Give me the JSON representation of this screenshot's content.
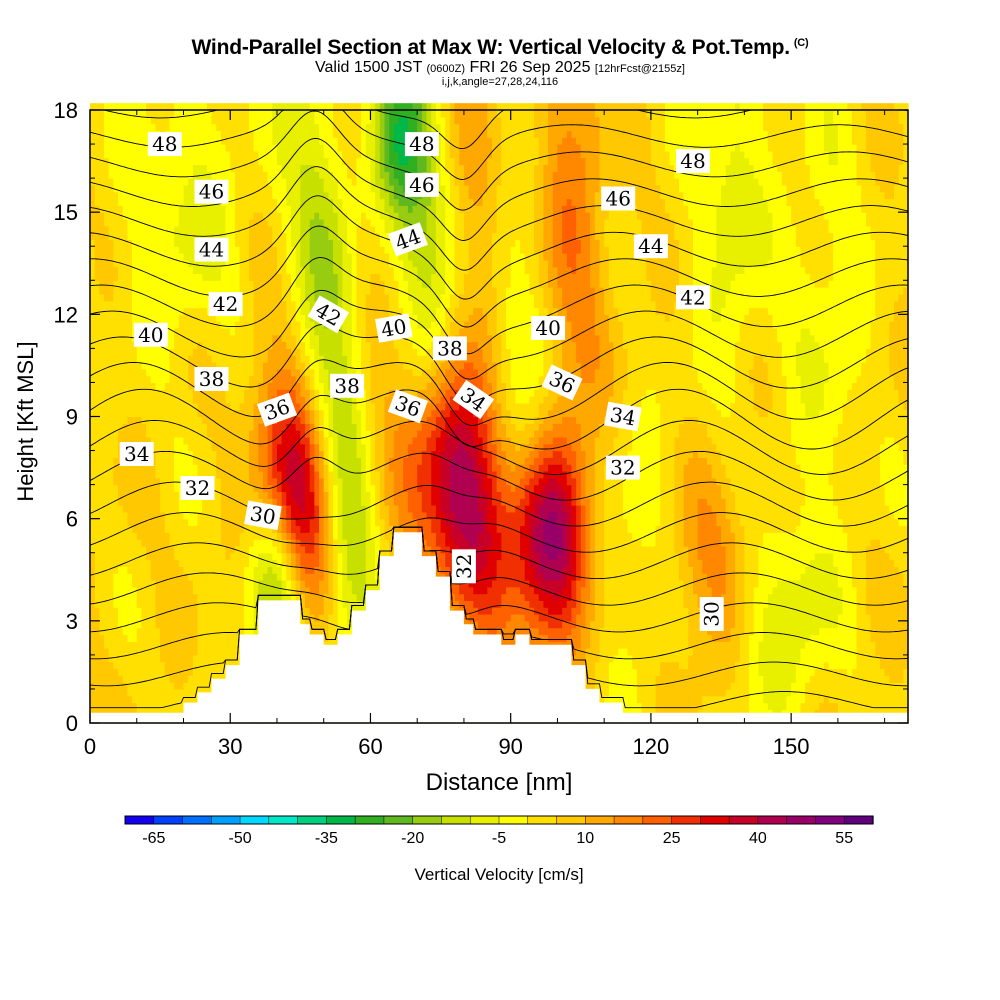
{
  "header": {
    "title": "Wind-Parallel Section at Max W: Vertical Velocity & Pot.Temp.",
    "copyright": "(C)",
    "valid_prefix": "Valid 1500 JST",
    "valid_utc": "(0600Z)",
    "valid_date": "FRI 26 Sep 2025",
    "forecast_info": "[12hrFcst@2155z]",
    "indices": "i,j,k,angle=27,28,24,116"
  },
  "chart_data": {
    "type": "heatmap",
    "title": "Wind-Parallel Section at Max W: Vertical Velocity & Pot.Temp.",
    "xlabel": "Distance [nm]",
    "ylabel": "Height [Kft MSL]",
    "xlim": [
      0,
      175
    ],
    "ylim": [
      0,
      18
    ],
    "x_ticks": [
      "0",
      "30",
      "60",
      "90",
      "120",
      "150"
    ],
    "x_tick_values": [
      0,
      30,
      60,
      90,
      120,
      150
    ],
    "y_ticks": [
      "0",
      "3",
      "6",
      "9",
      "12",
      "15",
      "18"
    ],
    "y_tick_values": [
      0,
      3,
      6,
      9,
      12,
      15,
      18
    ],
    "colorbar": {
      "label": "Vertical Velocity [cm/s]",
      "min": -70,
      "max": 60,
      "tick_labels": [
        "-65",
        "-50",
        "-35",
        "-20",
        "-5",
        "10",
        "25",
        "40",
        "55"
      ],
      "tick_values": [
        -65,
        -50,
        -35,
        -20,
        -5,
        10,
        25,
        40,
        55
      ],
      "colors": [
        "#1400f0",
        "#0040ff",
        "#0070ff",
        "#00a0ff",
        "#00d8ff",
        "#00e8c8",
        "#00d080",
        "#00b848",
        "#30b020",
        "#60b820",
        "#98cc10",
        "#c8e000",
        "#e8f000",
        "#ffff00",
        "#ffe000",
        "#ffc800",
        "#ffa800",
        "#ff8800",
        "#ff6000",
        "#f03000",
        "#e00000",
        "#c80028",
        "#b00050",
        "#980068",
        "#800080",
        "#600080"
      ]
    },
    "terrain": [
      [
        0,
        0.3
      ],
      [
        20,
        0.3
      ],
      [
        20,
        0.6
      ],
      [
        23,
        0.6
      ],
      [
        23,
        0.9
      ],
      [
        26,
        0.9
      ],
      [
        26,
        1.3
      ],
      [
        29,
        1.3
      ],
      [
        29,
        1.7
      ],
      [
        32,
        1.7
      ],
      [
        32,
        2.6
      ],
      [
        36,
        2.6
      ],
      [
        36,
        3.6
      ],
      [
        45,
        3.6
      ],
      [
        45,
        2.9
      ],
      [
        47,
        2.9
      ],
      [
        47,
        2.6
      ],
      [
        50,
        2.6
      ],
      [
        50,
        2.3
      ],
      [
        53,
        2.3
      ],
      [
        53,
        2.6
      ],
      [
        56,
        2.6
      ],
      [
        56,
        3.3
      ],
      [
        59,
        3.3
      ],
      [
        59,
        3.9
      ],
      [
        62,
        3.9
      ],
      [
        62,
        4.9
      ],
      [
        65,
        4.9
      ],
      [
        65,
        5.6
      ],
      [
        71,
        5.6
      ],
      [
        71,
        4.9
      ],
      [
        74,
        4.9
      ],
      [
        74,
        4.3
      ],
      [
        77,
        4.3
      ],
      [
        77,
        3.3
      ],
      [
        80,
        3.3
      ],
      [
        80,
        2.9
      ],
      [
        82,
        2.9
      ],
      [
        82,
        2.6
      ],
      [
        88,
        2.6
      ],
      [
        88,
        2.3
      ],
      [
        91,
        2.3
      ],
      [
        91,
        2.6
      ],
      [
        94,
        2.6
      ],
      [
        94,
        2.3
      ],
      [
        103,
        2.3
      ],
      [
        103,
        1.7
      ],
      [
        106,
        1.7
      ],
      [
        106,
        1.0
      ],
      [
        109,
        1.0
      ],
      [
        109,
        0.6
      ],
      [
        114,
        0.6
      ],
      [
        114,
        0.3
      ],
      [
        175,
        0.3
      ]
    ],
    "theta_levels": [
      28,
      29,
      30,
      31,
      32,
      33,
      34,
      35,
      36,
      37,
      38,
      39,
      40,
      41,
      42,
      43,
      44,
      45,
      46,
      47,
      48,
      49
    ],
    "theta_labels": [
      {
        "text": "48",
        "x": 16,
        "y": 17.0,
        "rot": 0
      },
      {
        "text": "48",
        "x": 71,
        "y": 17.0,
        "rot": 0
      },
      {
        "text": "48",
        "x": 129,
        "y": 16.5,
        "rot": 0
      },
      {
        "text": "46",
        "x": 26,
        "y": 15.6,
        "rot": 0
      },
      {
        "text": "46",
        "x": 71,
        "y": 15.8,
        "rot": 0
      },
      {
        "text": "46",
        "x": 113,
        "y": 15.4,
        "rot": 0
      },
      {
        "text": "44",
        "x": 26,
        "y": 13.9,
        "rot": 0
      },
      {
        "text": "44",
        "x": 68,
        "y": 14.2,
        "rot": -20
      },
      {
        "text": "44",
        "x": 120,
        "y": 14.0,
        "rot": 0
      },
      {
        "text": "42",
        "x": 29,
        "y": 12.3,
        "rot": 0
      },
      {
        "text": "42",
        "x": 51,
        "y": 12.0,
        "rot": 30
      },
      {
        "text": "42",
        "x": 129,
        "y": 12.5,
        "rot": 0
      },
      {
        "text": "40",
        "x": 13,
        "y": 11.4,
        "rot": 0
      },
      {
        "text": "40",
        "x": 65,
        "y": 11.6,
        "rot": -10
      },
      {
        "text": "40",
        "x": 98,
        "y": 11.6,
        "rot": 0
      },
      {
        "text": "38",
        "x": 26,
        "y": 10.1,
        "rot": 0
      },
      {
        "text": "38",
        "x": 55,
        "y": 9.9,
        "rot": 0
      },
      {
        "text": "38",
        "x": 77,
        "y": 11.0,
        "rot": 0
      },
      {
        "text": "36",
        "x": 40,
        "y": 9.2,
        "rot": -20
      },
      {
        "text": "36",
        "x": 68,
        "y": 9.3,
        "rot": 20
      },
      {
        "text": "36",
        "x": 101,
        "y": 10.0,
        "rot": 25
      },
      {
        "text": "34",
        "x": 10,
        "y": 7.9,
        "rot": 0
      },
      {
        "text": "34",
        "x": 82,
        "y": 9.5,
        "rot": 35
      },
      {
        "text": "34",
        "x": 114,
        "y": 9.0,
        "rot": 10
      },
      {
        "text": "32",
        "x": 23,
        "y": 6.9,
        "rot": 0
      },
      {
        "text": "32",
        "x": 80,
        "y": 4.6,
        "rot": -90
      },
      {
        "text": "32",
        "x": 114,
        "y": 7.5,
        "rot": 0
      },
      {
        "text": "30",
        "x": 37,
        "y": 6.1,
        "rot": 10
      },
      {
        "text": "30",
        "x": 133,
        "y": 3.2,
        "rot": -90
      }
    ],
    "w_field_features": [
      {
        "kind": "updraft",
        "x": 45,
        "z": 6.5,
        "sx": 2.6,
        "sz": 2.6,
        "amp": 38,
        "tilt": -0.45
      },
      {
        "kind": "updraft",
        "x": 78,
        "z": 7.0,
        "sx": 3.0,
        "sz": 2.7,
        "amp": 52,
        "tilt": -0.35
      },
      {
        "kind": "updraft",
        "x": 98,
        "z": 5.2,
        "sx": 2.6,
        "sz": 2.2,
        "amp": 46,
        "tilt": 0
      },
      {
        "kind": "updraft",
        "x": 133,
        "z": 4.5,
        "sx": 3.5,
        "sz": 2.2,
        "amp": 14,
        "tilt": 0
      },
      {
        "kind": "updraft",
        "x": 103,
        "z": 14,
        "sx": 2.5,
        "sz": 5.0,
        "amp": 14,
        "tilt": 0
      },
      {
        "kind": "updraft",
        "x": 84,
        "z": 13,
        "sx": 2.5,
        "sz": 5.0,
        "amp": 12,
        "tilt": -0.2
      },
      {
        "kind": "updraft",
        "x": 62,
        "z": 14,
        "sx": 2.5,
        "sz": 5.0,
        "amp": 10,
        "tilt": -0.2
      },
      {
        "kind": "downdraft",
        "x": 40,
        "z": 4.0,
        "sx": 2.0,
        "sz": 2.0,
        "amp": -22,
        "tilt": 0
      },
      {
        "kind": "downdraft",
        "x": 52,
        "z": 12.0,
        "sx": 2.2,
        "sz": 6.0,
        "amp": -22,
        "tilt": -0.35
      },
      {
        "kind": "downdraft",
        "x": 72,
        "z": 12.5,
        "sx": 2.2,
        "sz": 6.0,
        "amp": -25,
        "tilt": -0.35
      },
      {
        "kind": "downdraft",
        "x": 92,
        "z": 10.0,
        "sx": 2.2,
        "sz": 4.5,
        "amp": -18,
        "tilt": -0.3
      },
      {
        "kind": "downdraft",
        "x": 53,
        "z": 4.0,
        "sx": 2.0,
        "sz": 2.0,
        "amp": -18,
        "tilt": 0
      },
      {
        "kind": "downdraft",
        "x": 65,
        "z": 17.0,
        "sx": 2.0,
        "sz": 2.0,
        "amp": -25,
        "tilt": 0
      },
      {
        "kind": "downdraft",
        "x": 147,
        "z": 3.0,
        "sx": 3.5,
        "sz": 2.0,
        "amp": -14,
        "tilt": 0
      },
      {
        "kind": "downdraft",
        "x": 20,
        "z": 15.0,
        "sx": 4.5,
        "sz": 3.0,
        "amp": -10,
        "tilt": 0
      },
      {
        "kind": "downdraft",
        "x": 137,
        "z": 15.5,
        "sx": 2.5,
        "sz": 4.0,
        "amp": -12,
        "tilt": 0
      },
      {
        "kind": "downdraft",
        "x": 157,
        "z": 12.0,
        "sx": 3.0,
        "sz": 5.0,
        "amp": -8,
        "tilt": 0
      },
      {
        "kind": "downdraft",
        "x": 118,
        "z": 5.0,
        "sx": 3.0,
        "sz": 3.0,
        "amp": -8,
        "tilt": 0
      }
    ]
  }
}
